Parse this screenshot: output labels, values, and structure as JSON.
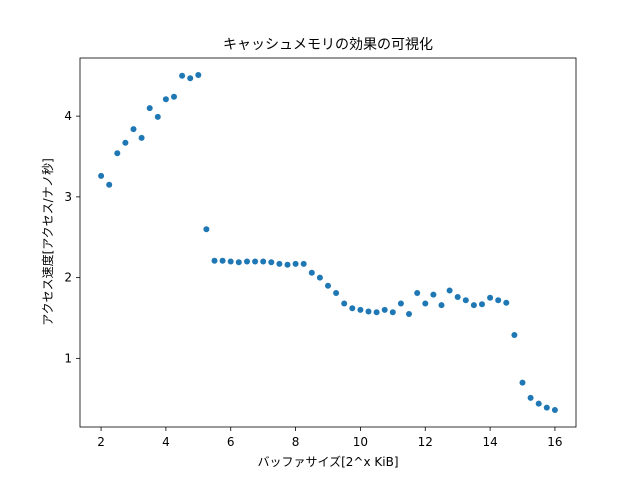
{
  "chart_data": {
    "type": "scatter",
    "title": "キャッシュメモリの効果の可視化",
    "xlabel": "バッファサイズ[2^x KiB]",
    "ylabel": "アクセス速度[アクセス/ナノ秒]",
    "xlim": [
      1.35,
      16.65
    ],
    "ylim": [
      0.15,
      4.72
    ],
    "xticks": [
      2,
      4,
      6,
      8,
      10,
      12,
      14,
      16
    ],
    "yticks": [
      1,
      2,
      3,
      4
    ],
    "grid": false,
    "marker_color": "#1f77b4",
    "points": [
      [
        2.0,
        3.26
      ],
      [
        2.25,
        3.15
      ],
      [
        2.5,
        3.54
      ],
      [
        2.75,
        3.67
      ],
      [
        3.0,
        3.84
      ],
      [
        3.25,
        3.73
      ],
      [
        3.5,
        4.1
      ],
      [
        3.75,
        3.99
      ],
      [
        4.0,
        4.21
      ],
      [
        4.25,
        4.24
      ],
      [
        4.5,
        4.5
      ],
      [
        4.75,
        4.47
      ],
      [
        5.0,
        4.51
      ],
      [
        5.25,
        2.6
      ],
      [
        5.5,
        2.21
      ],
      [
        5.75,
        2.21
      ],
      [
        6.0,
        2.2
      ],
      [
        6.25,
        2.19
      ],
      [
        6.5,
        2.2
      ],
      [
        6.75,
        2.2
      ],
      [
        7.0,
        2.2
      ],
      [
        7.25,
        2.19
      ],
      [
        7.5,
        2.17
      ],
      [
        7.75,
        2.16
      ],
      [
        8.0,
        2.17
      ],
      [
        8.25,
        2.17
      ],
      [
        8.5,
        2.06
      ],
      [
        8.75,
        2.0
      ],
      [
        9.0,
        1.9
      ],
      [
        9.25,
        1.81
      ],
      [
        9.5,
        1.68
      ],
      [
        9.75,
        1.62
      ],
      [
        10.0,
        1.6
      ],
      [
        10.25,
        1.58
      ],
      [
        10.5,
        1.57
      ],
      [
        10.75,
        1.6
      ],
      [
        11.0,
        1.57
      ],
      [
        11.25,
        1.68
      ],
      [
        11.5,
        1.55
      ],
      [
        11.75,
        1.81
      ],
      [
        12.0,
        1.68
      ],
      [
        12.25,
        1.79
      ],
      [
        12.5,
        1.66
      ],
      [
        12.75,
        1.84
      ],
      [
        13.0,
        1.76
      ],
      [
        13.25,
        1.72
      ],
      [
        13.5,
        1.66
      ],
      [
        13.75,
        1.67
      ],
      [
        14.0,
        1.75
      ],
      [
        14.25,
        1.72
      ],
      [
        14.5,
        1.69
      ],
      [
        14.75,
        1.29
      ],
      [
        15.0,
        0.7
      ],
      [
        15.25,
        0.51
      ],
      [
        15.5,
        0.44
      ],
      [
        15.75,
        0.39
      ],
      [
        16.0,
        0.36
      ]
    ]
  }
}
